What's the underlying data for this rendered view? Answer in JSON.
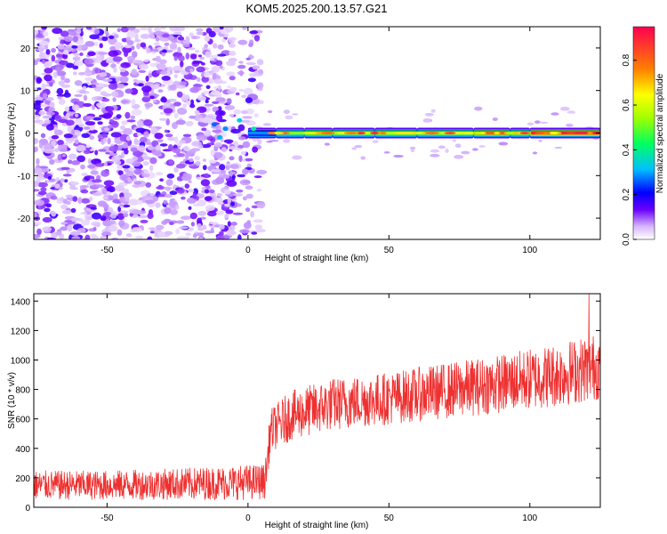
{
  "title": "KOM5.2025.200.13.57.G21",
  "chart_data": [
    {
      "type": "heatmap",
      "xlabel": "Height of straight line (km)",
      "ylabel": "Frequency (Hz)",
      "xlim": [
        -76,
        125
      ],
      "ylim": [
        -25,
        25
      ],
      "x_ticks": [
        -50,
        0,
        50,
        100
      ],
      "y_ticks": [
        -20,
        -10,
        0,
        10,
        20
      ],
      "x_tick_labels": [
        "-50",
        "0",
        "50",
        "100"
      ],
      "y_tick_labels": [
        "-20",
        "-10",
        "0",
        "10",
        "20"
      ],
      "noise_region_x": [
        -76,
        5
      ],
      "signal": {
        "frequency_hz": 0,
        "start_height_km": 0,
        "segments": [
          {
            "x": [
              0,
              10
            ],
            "amplitude": 0.3
          },
          {
            "x": [
              10,
              20
            ],
            "amplitude": 0.55
          },
          {
            "x": [
              20,
              30
            ],
            "amplitude": 0.75
          },
          {
            "x": [
              30,
              45
            ],
            "amplitude": 0.65
          },
          {
            "x": [
              45,
              60
            ],
            "amplitude": 0.7
          },
          {
            "x": [
              60,
              80
            ],
            "amplitude": 0.65
          },
          {
            "x": [
              80,
              93
            ],
            "amplitude": 0.85
          },
          {
            "x": [
              93,
              100
            ],
            "amplitude": 0.7
          },
          {
            "x": [
              100,
              125
            ],
            "amplitude": 0.95
          }
        ]
      },
      "colorbar": {
        "label": "Normalized spectral amplitude",
        "range": [
          0,
          0.95
        ],
        "ticks": [
          0.0,
          0.2,
          0.4,
          0.6,
          0.8
        ],
        "tick_labels": [
          "0.0",
          "0.2",
          "0.4",
          "0.6",
          "0.8"
        ],
        "colors": [
          "#ffffff",
          "#6a00ff",
          "#0000ff",
          "#00c0ff",
          "#00ff60",
          "#a0ff00",
          "#ffff00",
          "#ff8000",
          "#ff0050"
        ]
      }
    },
    {
      "type": "line",
      "xlabel": "Height of straight line (km)",
      "ylabel": "SNR (10 * v/v)",
      "xlim": [
        -76,
        125
      ],
      "ylim": [
        0,
        1450
      ],
      "x_ticks": [
        -50,
        0,
        50,
        100
      ],
      "y_ticks": [
        0,
        200,
        400,
        600,
        800,
        1000,
        1200,
        1400
      ],
      "x_tick_labels": [
        "-50",
        "0",
        "50",
        "100"
      ],
      "y_tick_labels": [
        "0",
        "200",
        "400",
        "600",
        "800",
        "1000",
        "1200",
        "1400"
      ],
      "series_color": "#ee3030",
      "series": [
        {
          "trend_x": [
            -76,
            -50,
            -20,
            0,
            6,
            8,
            15,
            30,
            50,
            70,
            90,
            110,
            125
          ],
          "trend_y": [
            150,
            150,
            160,
            170,
            175,
            520,
            620,
            700,
            740,
            790,
            840,
            900,
            960
          ],
          "spread": [
            100,
            100,
            110,
            120,
            120,
            150,
            170,
            180,
            180,
            190,
            200,
            220,
            230
          ],
          "peak_x": 121,
          "peak_y": 1450
        }
      ]
    }
  ]
}
